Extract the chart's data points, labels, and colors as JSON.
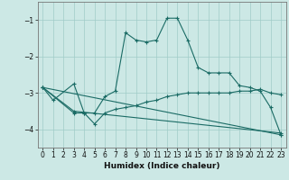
{
  "xlabel": "Humidex (Indice chaleur)",
  "bg_color": "#cce8e5",
  "grid_color": "#a0ccc8",
  "line_color": "#1a6b65",
  "x_ticks": [
    0,
    1,
    2,
    3,
    4,
    5,
    6,
    7,
    8,
    9,
    10,
    11,
    12,
    13,
    14,
    15,
    16,
    17,
    18,
    19,
    20,
    21,
    22,
    23
  ],
  "y_ticks": [
    -1,
    -2,
    -3,
    -4
  ],
  "ylim": [
    -4.5,
    -0.5
  ],
  "xlim": [
    -0.5,
    23.5
  ],
  "series": [
    {
      "x": [
        0,
        1,
        3,
        4,
        5,
        6,
        7,
        8,
        9,
        10,
        11,
        12,
        13,
        14,
        15,
        16,
        17,
        18,
        19,
        20,
        21,
        22,
        23
      ],
      "y": [
        -2.85,
        -3.2,
        -2.75,
        -3.55,
        -3.55,
        -3.1,
        -2.95,
        -1.35,
        -1.55,
        -1.6,
        -1.55,
        -0.95,
        -0.95,
        -1.55,
        -2.3,
        -2.45,
        -2.45,
        -2.45,
        -2.8,
        -2.85,
        -2.95,
        -3.4,
        -4.15
      ]
    },
    {
      "x": [
        0,
        3,
        4,
        5,
        6,
        7,
        8,
        9,
        10,
        11,
        12,
        13,
        14,
        15,
        16,
        17,
        18,
        19,
        20,
        21,
        22,
        23
      ],
      "y": [
        -2.85,
        -3.55,
        -3.55,
        -3.85,
        -3.55,
        -3.45,
        -3.4,
        -3.35,
        -3.25,
        -3.2,
        -3.1,
        -3.05,
        -3.0,
        -3.0,
        -3.0,
        -3.0,
        -3.0,
        -2.95,
        -2.95,
        -2.9,
        -3.0,
        -3.05
      ]
    },
    {
      "x": [
        0,
        3,
        23
      ],
      "y": [
        -2.85,
        -3.5,
        -4.1
      ]
    },
    {
      "x": [
        0,
        23
      ],
      "y": [
        -2.85,
        -4.15
      ]
    }
  ]
}
